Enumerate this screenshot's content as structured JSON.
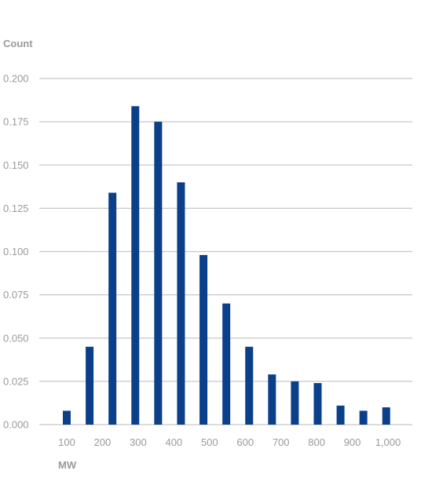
{
  "chart_data": {
    "type": "bar",
    "ylabel": "Count",
    "xlabel": "MW",
    "ylim": [
      0,
      0.2
    ],
    "yticks": [
      "0.000",
      "0.025",
      "0.050",
      "0.075",
      "0.100",
      "0.125",
      "0.150",
      "0.175",
      "0.200"
    ],
    "xlim": [
      100,
      1000
    ],
    "xticks": [
      "100",
      "200",
      "300",
      "400",
      "500",
      "600",
      "700",
      "800",
      "900",
      "1,000"
    ],
    "bin_centers": [
      100,
      164,
      228,
      292,
      356,
      420,
      483,
      547,
      611,
      675,
      739,
      803,
      867,
      931,
      995
    ],
    "values": [
      0.008,
      0.045,
      0.134,
      0.184,
      0.175,
      0.14,
      0.098,
      0.07,
      0.045,
      0.029,
      0.025,
      0.024,
      0.011,
      0.008,
      0.01
    ],
    "grid": true,
    "colors": {
      "bar": "#0b3f8a",
      "grid": "#c8c8c8",
      "text": "#9a9a9a"
    }
  }
}
